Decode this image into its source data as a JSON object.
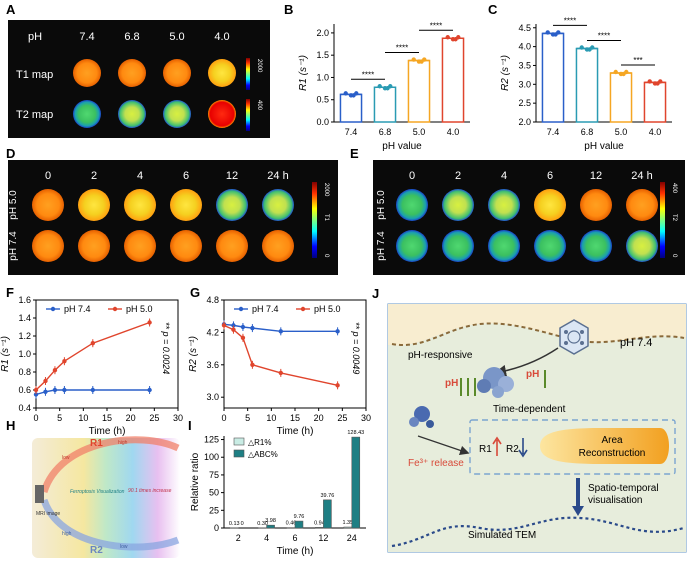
{
  "panels": {
    "A": {
      "letter": "A",
      "ph_label": "pH",
      "ph_values": [
        "7.4",
        "6.8",
        "5.0",
        "4.0"
      ],
      "row_labels": [
        "T1 map",
        "T2 map"
      ],
      "t1_bar": {
        "max": "2000",
        "min": "0",
        "unit": "ms",
        "symbol": "T1"
      },
      "t2_bar": {
        "max": "400",
        "min": "0",
        "unit": "ms",
        "symbol": "T2"
      }
    },
    "B": {
      "letter": "B"
    },
    "C": {
      "letter": "C"
    },
    "D": {
      "letter": "D",
      "times": [
        "0",
        "2",
        "4",
        "6",
        "12",
        "24 h"
      ],
      "rows": [
        "pH 5.0",
        "pH 7.4"
      ],
      "bar": {
        "max": "2000",
        "min": "0",
        "unit": "ms",
        "symbol": "T1"
      }
    },
    "E": {
      "letter": "E",
      "times": [
        "0",
        "2",
        "4",
        "6",
        "12",
        "24 h"
      ],
      "rows": [
        "pH 5.0",
        "pH 7.4"
      ],
      "bar": {
        "max": "400",
        "min": "0",
        "unit": "ms",
        "symbol": "T2"
      }
    },
    "F": {
      "letter": "F",
      "pval": "** p = 0.0024"
    },
    "G": {
      "letter": "G",
      "pval": "** p = 0.0049"
    },
    "H": {
      "letter": "H",
      "r1": "R1",
      "r2": "R2",
      "high_top": "high",
      "low_top": "low",
      "high_bot": "high",
      "low_bot": "low",
      "mri": "MRI image",
      "ferro": "Ferroptosis Visualization",
      "increase": "90.1 times increase"
    },
    "I": {
      "letter": "I"
    },
    "J": {
      "letter": "J",
      "ph74": "pH 7.4",
      "ph_responsive": "pH-responsive",
      "ph_a": "pH",
      "ph_b": "pH",
      "time_dep": "Time-dependent",
      "fe": "Fe³⁺ release",
      "r1": "R1",
      "r2": "R2",
      "area": "Area Reconstruction",
      "spatio": "Spatio-temporal visualisation",
      "tem": "Simulated TEM"
    }
  },
  "colors": {
    "blue": "#2a5fc9",
    "red": "#e0452d",
    "teal": "#1e7f84",
    "mint": "#c9ece4",
    "orange": "#f5a623",
    "cyan": "#2a9bb3"
  },
  "chart_data": [
    {
      "id": "B",
      "type": "bar",
      "categories": [
        "7.4",
        "6.8",
        "5.0",
        "4.0"
      ],
      "values": [
        0.62,
        0.78,
        1.38,
        1.88
      ],
      "ylabel": "R1 (s⁻¹)",
      "xlabel": "pH value",
      "ylim": [
        0,
        2.2
      ],
      "yticks": [
        0,
        0.5,
        1.0,
        1.5,
        2.0
      ],
      "bar_colors": [
        "#2a5fc9",
        "#2a9bb3",
        "#f5a623",
        "#e0452d"
      ],
      "significance": [
        "****",
        "****",
        "****"
      ]
    },
    {
      "id": "C",
      "type": "bar",
      "categories": [
        "7.4",
        "6.8",
        "5.0",
        "4.0"
      ],
      "values": [
        4.35,
        3.95,
        3.3,
        3.05
      ],
      "ylabel": "R2 (s⁻¹)",
      "xlabel": "pH value",
      "ylim": [
        2.0,
        4.6
      ],
      "yticks": [
        2.0,
        2.5,
        3.0,
        3.5,
        4.0,
        4.5
      ],
      "bar_colors": [
        "#2a5fc9",
        "#2a9bb3",
        "#f5a623",
        "#e0452d"
      ],
      "significance": [
        "****",
        "****",
        "***"
      ]
    },
    {
      "id": "F",
      "type": "line",
      "x": [
        0,
        2,
        4,
        6,
        12,
        24
      ],
      "series": [
        {
          "name": "pH 7.4",
          "values": [
            0.55,
            0.58,
            0.6,
            0.6,
            0.6,
            0.6
          ],
          "color": "#2a5fc9"
        },
        {
          "name": "pH 5.0",
          "values": [
            0.6,
            0.7,
            0.82,
            0.92,
            1.12,
            1.35
          ],
          "color": "#e0452d"
        }
      ],
      "ylabel": "R1 (s⁻¹)",
      "xlabel": "Time (h)",
      "xlim": [
        0,
        30
      ],
      "xticks": [
        0,
        5,
        10,
        15,
        20,
        25,
        30
      ],
      "ylim": [
        0.4,
        1.6
      ],
      "yticks": [
        0.4,
        0.6,
        0.8,
        1.0,
        1.2,
        1.4,
        1.6
      ],
      "legend": "top"
    },
    {
      "id": "G",
      "type": "line",
      "x": [
        0,
        2,
        4,
        6,
        12,
        24
      ],
      "series": [
        {
          "name": "pH 7.4",
          "values": [
            4.35,
            4.33,
            4.3,
            4.28,
            4.22,
            4.22
          ],
          "color": "#2a5fc9"
        },
        {
          "name": "pH 5.0",
          "values": [
            4.33,
            4.25,
            4.1,
            3.6,
            3.45,
            3.22
          ],
          "color": "#e0452d"
        }
      ],
      "ylabel": "R2 (s⁻¹)",
      "xlabel": "Time (h)",
      "xlim": [
        0,
        30
      ],
      "xticks": [
        0,
        5,
        10,
        15,
        20,
        25,
        30
      ],
      "ylim": [
        2.8,
        4.8
      ],
      "yticks": [
        3.0,
        3.6,
        4.2,
        4.8
      ],
      "legend": "top"
    },
    {
      "id": "I",
      "type": "bar",
      "categories": [
        "2",
        "4",
        "6",
        "12",
        "24"
      ],
      "series": [
        {
          "name": "△R1%",
          "values": [
            0.13,
            0.3,
            0.46,
            0.94,
            1.35
          ],
          "color": "#c9ece4"
        },
        {
          "name": "△ABC%",
          "values": [
            0,
            3.98,
            9.76,
            39.76,
            128.43
          ],
          "color": "#1e7f84"
        }
      ],
      "labels": [
        [
          "0.13",
          "0.30",
          "0.46",
          "0.94",
          "1.35"
        ],
        [
          "0",
          "3.98",
          "9.76",
          "39.76",
          "128.43"
        ]
      ],
      "ylabel": "Relative ratio",
      "xlabel": "Time (h)",
      "ylim": [
        0,
        130
      ],
      "yticks": [
        0,
        25,
        50,
        75,
        100,
        125
      ],
      "legend": "top-left"
    }
  ]
}
